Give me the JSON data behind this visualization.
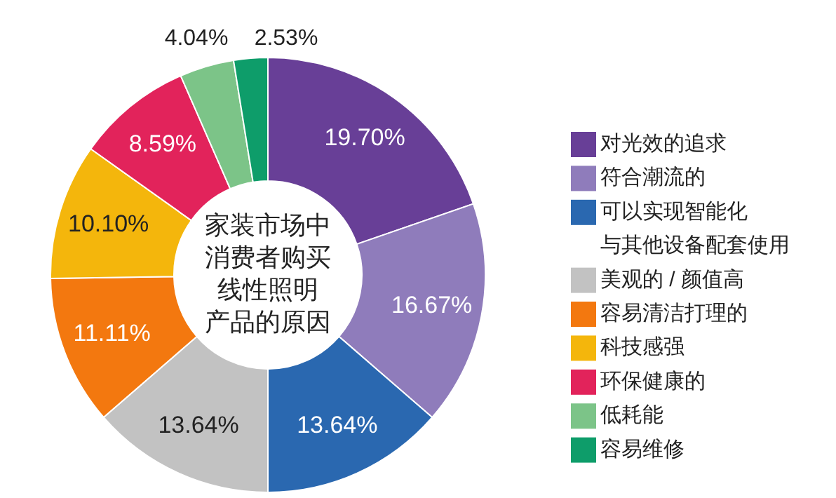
{
  "chart_data": {
    "type": "donut",
    "title": "家装市场中消费者购买线性照明产品的原因",
    "categories": [
      "对光效的追求",
      "符合潮流的",
      "可以实现智能化与其他设备配套使用",
      "美观的 / 颜值高",
      "容易清洁打理的",
      "科技感强",
      "环保健康的",
      "低耗能",
      "容易维修"
    ],
    "values": [
      19.7,
      16.67,
      13.64,
      13.64,
      11.11,
      10.1,
      8.59,
      4.04,
      2.53
    ],
    "value_labels": [
      "19.70%",
      "16.67%",
      "13.64%",
      "13.64%",
      "11.11%",
      "10.10%",
      "8.59%",
      "4.04%",
      "2.53%"
    ],
    "colors": [
      "#683f97",
      "#8f7cbb",
      "#2a68b0",
      "#c2c2c2",
      "#f3780f",
      "#f4b60c",
      "#e2235b",
      "#7cc488",
      "#0e9d6a"
    ],
    "legend": "right"
  }
}
